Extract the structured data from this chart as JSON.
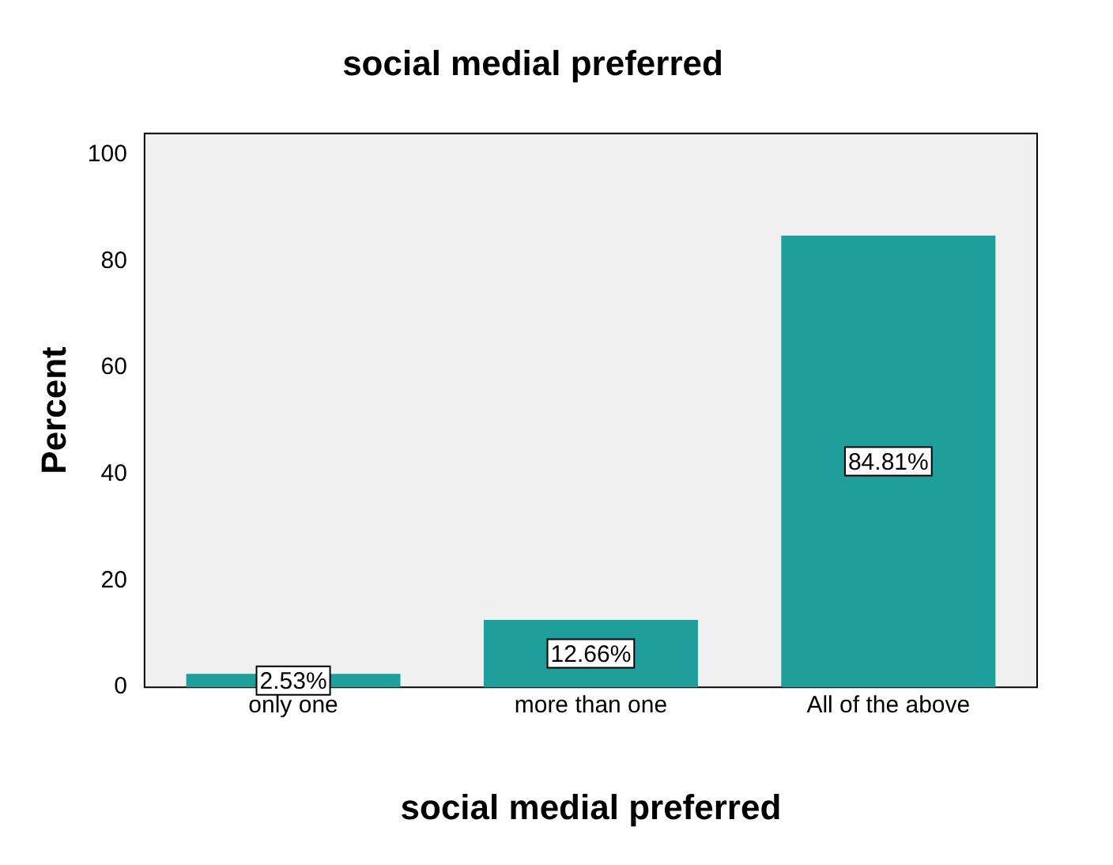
{
  "chart_data": {
    "type": "bar",
    "title": "social medial preferred",
    "xlabel": "social medial preferred",
    "ylabel": "Percent",
    "categories": [
      "only one",
      "more than one",
      "All of the above"
    ],
    "values": [
      2.53,
      12.66,
      84.81
    ],
    "value_labels": [
      "2.53%",
      "12.66%",
      "84.81%"
    ],
    "color": "#1f9e9b",
    "ylim": [
      0,
      104
    ],
    "yticks": [
      0,
      20,
      40,
      60,
      80,
      100
    ],
    "grid": false,
    "legend": false
  }
}
